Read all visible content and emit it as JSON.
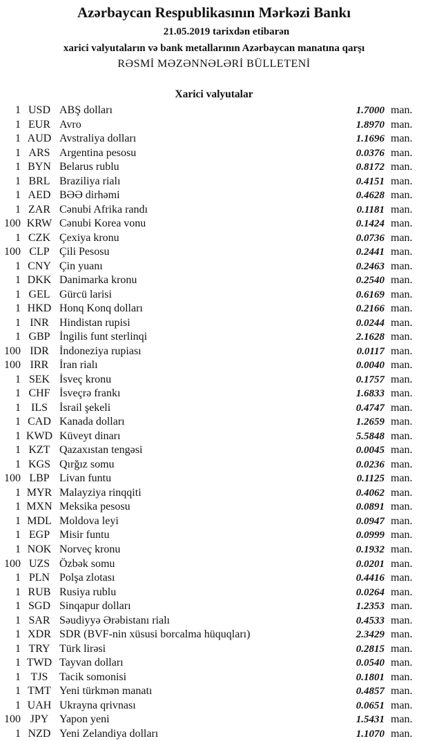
{
  "header": {
    "title": "Azərbaycan Respublikasının Mərkəzi Bankı",
    "date_line": "21.05.2019  tarixdən etibarən",
    "subtitle": "xarici valyutaların və bank metallarının Azərbaycan manatına qarşı",
    "bulletin": "RƏSMİ MƏZƏNNƏLƏRİ BÜLLETENİ",
    "section": "Xarici valyutalar"
  },
  "unit_label": "man.",
  "rates": [
    {
      "amount": "1",
      "code": "USD",
      "name": "ABŞ dolları",
      "rate": "1.7000"
    },
    {
      "amount": "1",
      "code": "EUR",
      "name": "Avro",
      "rate": "1.8970"
    },
    {
      "amount": "1",
      "code": "AUD",
      "name": "Avstraliya dolları",
      "rate": "1.1696"
    },
    {
      "amount": "1",
      "code": "ARS",
      "name": "Argentina pesosu",
      "rate": "0.0376"
    },
    {
      "amount": "1",
      "code": "BYN",
      "name": "Belarus rublu",
      "rate": "0.8172"
    },
    {
      "amount": "1",
      "code": "BRL",
      "name": "Braziliya rialı",
      "rate": "0.4151"
    },
    {
      "amount": "1",
      "code": "AED",
      "name": "BƏƏ dirhəmi",
      "rate": "0.4628"
    },
    {
      "amount": "1",
      "code": "ZAR",
      "name": "Cənubi Afrika randı",
      "rate": "0.1181"
    },
    {
      "amount": "100",
      "code": "KRW",
      "name": "Cənubi Korea vonu",
      "rate": "0.1424"
    },
    {
      "amount": "1",
      "code": "CZK",
      "name": "Çexiya kronu",
      "rate": "0.0736"
    },
    {
      "amount": "100",
      "code": "CLP",
      "name": "Çili Pesosu",
      "rate": "0.2441"
    },
    {
      "amount": "1",
      "code": "CNY",
      "name": "Çin yuanı",
      "rate": "0.2463"
    },
    {
      "amount": "1",
      "code": "DKK",
      "name": "Danimarka kronu",
      "rate": "0.2540"
    },
    {
      "amount": "1",
      "code": "GEL",
      "name": "Gürcü larisi",
      "rate": "0.6169"
    },
    {
      "amount": "1",
      "code": "HKD",
      "name": "Honq Konq dolları",
      "rate": "0.2166"
    },
    {
      "amount": "1",
      "code": "INR",
      "name": "Hindistan rupisi",
      "rate": "0.0244"
    },
    {
      "amount": "1",
      "code": "GBP",
      "name": "İngilis funt sterlinqi",
      "rate": "2.1628"
    },
    {
      "amount": "100",
      "code": "IDR",
      "name": "İndoneziya rupiası",
      "rate": "0.0117"
    },
    {
      "amount": "100",
      "code": "IRR",
      "name": "İran rialı",
      "rate": "0.0040"
    },
    {
      "amount": "1",
      "code": "SEK",
      "name": "İsveç kronu",
      "rate": "0.1757"
    },
    {
      "amount": "1",
      "code": "CHF",
      "name": "İsveçrə frankı",
      "rate": "1.6833"
    },
    {
      "amount": "1",
      "code": "ILS",
      "name": "İsrail şekeli",
      "rate": "0.4747"
    },
    {
      "amount": "1",
      "code": "CAD",
      "name": "Kanada dolları",
      "rate": "1.2659"
    },
    {
      "amount": "1",
      "code": "KWD",
      "name": "Küveyt dinarı",
      "rate": "5.5848"
    },
    {
      "amount": "1",
      "code": "KZT",
      "name": "Qazaxıstan tengəsi",
      "rate": "0.0045"
    },
    {
      "amount": "1",
      "code": "KGS",
      "name": "Qırğız somu",
      "rate": "0.0236"
    },
    {
      "amount": "100",
      "code": "LBP",
      "name": "Livan funtu",
      "rate": "0.1125"
    },
    {
      "amount": "1",
      "code": "MYR",
      "name": "Malayziya rinqqiti",
      "rate": "0.4062"
    },
    {
      "amount": "1",
      "code": "MXN",
      "name": "Meksika pesosu",
      "rate": "0.0891"
    },
    {
      "amount": "1",
      "code": "MDL",
      "name": "Moldova leyi",
      "rate": "0.0947"
    },
    {
      "amount": "1",
      "code": "EGP",
      "name": "Misir funtu",
      "rate": "0.0999"
    },
    {
      "amount": "1",
      "code": "NOK",
      "name": "Norveç kronu",
      "rate": "0.1932"
    },
    {
      "amount": "100",
      "code": "UZS",
      "name": "Özbək somu",
      "rate": "0.0201"
    },
    {
      "amount": "1",
      "code": "PLN",
      "name": "Polşa zlotası",
      "rate": "0.4416"
    },
    {
      "amount": "1",
      "code": "RUB",
      "name": "Rusiya rublu",
      "rate": "0.0264"
    },
    {
      "amount": "1",
      "code": "SGD",
      "name": "Sinqapur dolları",
      "rate": "1.2353"
    },
    {
      "amount": "1",
      "code": "SAR",
      "name": "Səudiyyə Ərəbistanı rialı",
      "rate": "0.4533"
    },
    {
      "amount": "1",
      "code": "XDR",
      "name": "SDR (BVF-nin xüsusi borcalma hüquqları)",
      "rate": "2.3429"
    },
    {
      "amount": "1",
      "code": "TRY",
      "name": "Türk lirəsi",
      "rate": "0.2815"
    },
    {
      "amount": "1",
      "code": "TWD",
      "name": "Tayvan dolları",
      "rate": "0.0540"
    },
    {
      "amount": "1",
      "code": "TJS",
      "name": "Tacik somonisi",
      "rate": "0.1801"
    },
    {
      "amount": "1",
      "code": "TMT",
      "name": "Yeni türkmən manatı",
      "rate": "0.4857"
    },
    {
      "amount": "1",
      "code": "UAH",
      "name": "Ukrayna qrivnası",
      "rate": "0.0651"
    },
    {
      "amount": "100",
      "code": "JPY",
      "name": "Yapon yeni",
      "rate": "1.5431"
    },
    {
      "amount": "1",
      "code": "NZD",
      "name": "Yeni Zelandiya dolları",
      "rate": "1.1070"
    }
  ]
}
